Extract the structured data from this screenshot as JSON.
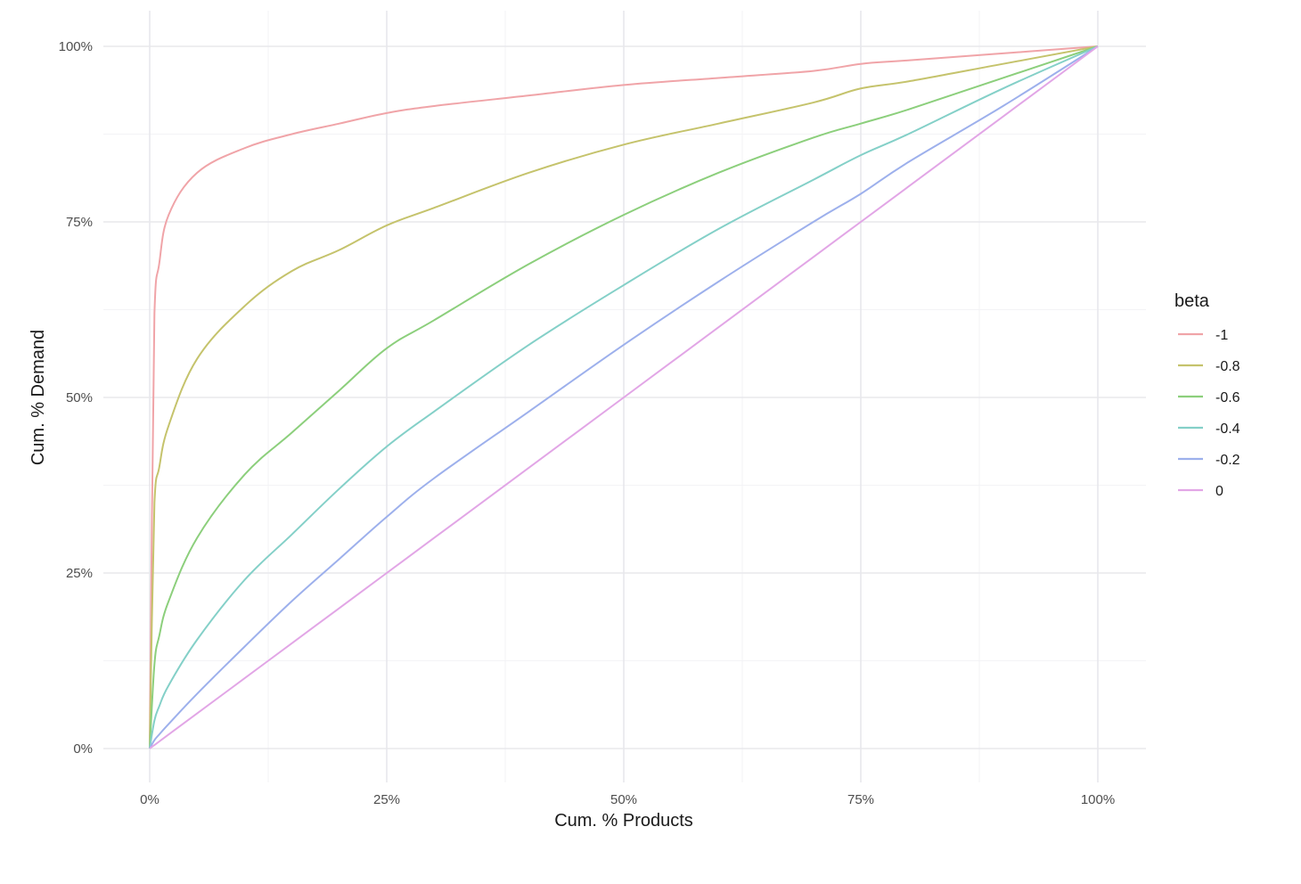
{
  "chart_data": {
    "type": "line",
    "xlabel": "Cum. % Products",
    "ylabel": "Cum. % Demand",
    "xlim": [
      0,
      1
    ],
    "ylim": [
      0,
      1
    ],
    "x_ticks": [
      0,
      0.25,
      0.5,
      0.75,
      1
    ],
    "x_tick_labels": [
      "0%",
      "25%",
      "50%",
      "75%",
      "100%"
    ],
    "y_ticks": [
      0,
      0.25,
      0.5,
      0.75,
      1
    ],
    "y_tick_labels": [
      "0%",
      "25%",
      "50%",
      "75%",
      "100%"
    ],
    "grid": true,
    "legend": {
      "title": "beta",
      "position": "right"
    },
    "x": [
      0,
      0.005,
      0.01,
      0.02,
      0.05,
      0.1,
      0.15,
      0.2,
      0.25,
      0.3,
      0.4,
      0.5,
      0.6,
      0.7,
      0.75,
      0.8,
      0.9,
      1.0
    ],
    "series": [
      {
        "name": "-1",
        "color": "#f0a4a8",
        "values": [
          0,
          0.62,
          0.69,
          0.76,
          0.82,
          0.855,
          0.875,
          0.89,
          0.905,
          0.915,
          0.93,
          0.945,
          0.955,
          0.965,
          0.975,
          0.98,
          0.99,
          1.0
        ]
      },
      {
        "name": "-0.8",
        "color": "#c5c36c",
        "values": [
          0,
          0.35,
          0.4,
          0.46,
          0.555,
          0.63,
          0.68,
          0.71,
          0.745,
          0.77,
          0.82,
          0.86,
          0.89,
          0.92,
          0.94,
          0.95,
          0.975,
          1.0
        ]
      },
      {
        "name": "-0.6",
        "color": "#8ccf7c",
        "values": [
          0,
          0.12,
          0.16,
          0.21,
          0.3,
          0.39,
          0.45,
          0.51,
          0.57,
          0.61,
          0.69,
          0.76,
          0.82,
          0.87,
          0.89,
          0.91,
          0.955,
          1.0
        ]
      },
      {
        "name": "-0.4",
        "color": "#84d0c8",
        "values": [
          0,
          0.04,
          0.06,
          0.09,
          0.155,
          0.24,
          0.305,
          0.37,
          0.43,
          0.48,
          0.575,
          0.66,
          0.74,
          0.81,
          0.845,
          0.875,
          0.94,
          1.0
        ]
      },
      {
        "name": "-0.2",
        "color": "#9db0ec",
        "values": [
          0,
          0.012,
          0.02,
          0.035,
          0.078,
          0.145,
          0.21,
          0.27,
          0.33,
          0.385,
          0.48,
          0.575,
          0.665,
          0.75,
          0.79,
          0.835,
          0.915,
          1.0
        ]
      },
      {
        "name": "0",
        "color": "#e2a6e6",
        "values": [
          0,
          0.005,
          0.01,
          0.02,
          0.05,
          0.1,
          0.15,
          0.2,
          0.25,
          0.3,
          0.4,
          0.5,
          0.6,
          0.7,
          0.75,
          0.8,
          0.9,
          1.0
        ]
      }
    ]
  }
}
